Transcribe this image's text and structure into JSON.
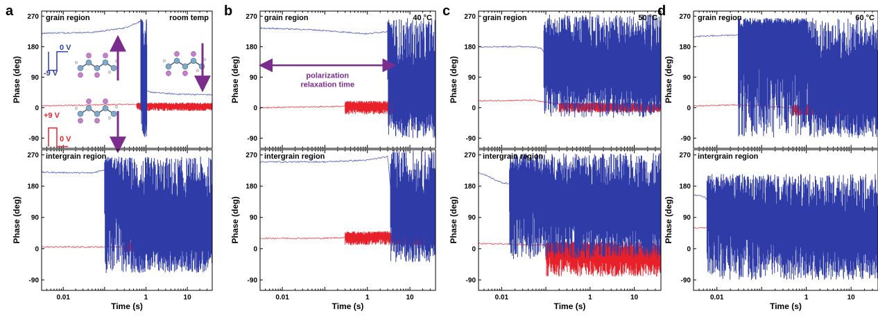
{
  "chart_data": [
    {
      "type": "line",
      "panel_label": "a",
      "condition": "room temp",
      "xlabel": "Time (s)",
      "xscale": "log",
      "xlim": [
        0.003,
        40
      ],
      "xticks": [
        "0.01",
        "1",
        "10"
      ],
      "ylabel": "Phase (deg)",
      "ylim": [
        -120,
        285
      ],
      "yticks": [
        "-90",
        "0",
        "90",
        "180",
        "270"
      ],
      "subplots": [
        {
          "title": "grain region",
          "series": [
            {
              "color": "#2f3ca8",
              "x": [
                0.003,
                0.05,
                0.3,
                0.75,
                0.85,
                1.5,
                5,
                40
              ],
              "y": [
                220,
                222,
                235,
                255,
                50,
                45,
                40,
                38
              ],
              "oscillation": {
                "t_start": 0.75,
                "t_end": 1.05,
                "low": -90,
                "high": 265
              }
            },
            {
              "color": "#e8202a",
              "x": [
                0.003,
                0.05,
                0.5,
                1,
                10,
                40
              ],
              "y": [
                5,
                8,
                10,
                8,
                5,
                5
              ],
              "oscillation": {
                "t_start": 0.6,
                "t_end": 40,
                "low": -10,
                "high": 15
              }
            }
          ],
          "annotations": {
            "pulse_negative": "-9 V",
            "pulse_zero_1": "0 V",
            "pulse_positive": "+9 V",
            "pulse_zero_2": "0 V"
          }
        },
        {
          "title": "intergrain region",
          "series": [
            {
              "color": "#2f3ca8",
              "x": [
                0.003,
                0.05,
                0.12,
                0.8,
                2,
                40
              ],
              "y": [
                220,
                218,
                230,
                40,
                45,
                45
              ],
              "oscillation": {
                "t_start": 0.1,
                "t_end": 40,
                "low": -70,
                "high": 265
              }
            },
            {
              "color": "#e8202a",
              "x": [
                0.003,
                0.1,
                1,
                40
              ],
              "y": [
                5,
                5,
                5,
                5
              ],
              "oscillation": {
                "t_start": 0.3,
                "t_end": 40,
                "low": -10,
                "high": 20
              }
            }
          ]
        }
      ]
    },
    {
      "type": "line",
      "panel_label": "b",
      "condition": "40 °C",
      "xlabel": "Time (s)",
      "xscale": "log",
      "xlim": [
        0.003,
        40
      ],
      "xticks": [
        "0.01",
        "1",
        "10"
      ],
      "ylabel": "Phase (deg)",
      "ylim": [
        -120,
        285
      ],
      "yticks": [
        "-90",
        "0",
        "90",
        "180",
        "270"
      ],
      "subplots": [
        {
          "title": "grain region",
          "series": [
            {
              "color": "#2f3ca8",
              "x": [
                0.003,
                0.05,
                1,
                3,
                5,
                10,
                40
              ],
              "y": [
                235,
                230,
                218,
                225,
                40,
                30,
                25
              ],
              "oscillation": {
                "t_start": 3,
                "t_end": 40,
                "low": -90,
                "high": 265
              }
            },
            {
              "color": "#e8202a",
              "x": [
                0.003,
                0.1,
                1,
                10,
                40
              ],
              "y": [
                0,
                3,
                5,
                5,
                5
              ],
              "oscillation": {
                "t_start": 0.3,
                "t_end": 40,
                "low": -20,
                "high": 20
              }
            }
          ],
          "annotations": {
            "arrow_label_line1": "polarization",
            "arrow_label_line2": "relaxation time"
          }
        },
        {
          "title": "intergrain region",
          "series": [
            {
              "color": "#2f3ca8",
              "x": [
                0.003,
                0.1,
                1,
                3,
                4,
                10,
                40
              ],
              "y": [
                250,
                250,
                255,
                265,
                100,
                90,
                80
              ],
              "oscillation": {
                "t_start": 3.5,
                "t_end": 40,
                "low": -40,
                "high": 285
              }
            },
            {
              "color": "#e8202a",
              "x": [
                0.003,
                0.1,
                1,
                3,
                10,
                40
              ],
              "y": [
                30,
                30,
                35,
                40,
                15,
                10
              ],
              "oscillation": {
                "t_start": 0.3,
                "t_end": 40,
                "low": 10,
                "high": 50
              }
            }
          ]
        }
      ]
    },
    {
      "type": "line",
      "panel_label": "c",
      "condition": "50 °C",
      "xlabel": "Time (s)",
      "xscale": "log",
      "xlim": [
        0.003,
        40
      ],
      "xticks": [
        "0.01",
        "1",
        "10"
      ],
      "ylabel": "Phase (deg)",
      "ylim": [
        -120,
        285
      ],
      "yticks": [
        "-90",
        "0",
        "90",
        "180",
        "270"
      ],
      "subplots": [
        {
          "title": "grain region",
          "series": [
            {
              "color": "#2f3ca8",
              "x": [
                0.003,
                0.05,
                0.08,
                0.1,
                1,
                10,
                40
              ],
              "y": [
                180,
                180,
                175,
                150,
                120,
                110,
                100
              ],
              "oscillation": {
                "t_start": 0.09,
                "t_end": 40,
                "low": -30,
                "high": 275
              }
            },
            {
              "color": "#e8202a",
              "x": [
                0.003,
                0.05,
                0.2,
                1,
                40
              ],
              "y": [
                20,
                22,
                10,
                5,
                0
              ],
              "oscillation": {
                "t_start": 0.2,
                "t_end": 40,
                "low": -15,
                "high": 15
              }
            }
          ]
        },
        {
          "title": "intergrain region",
          "series": [
            {
              "color": "#2f3ca8",
              "x": [
                0.003,
                0.01,
                0.05,
                0.1,
                1,
                10,
                40
              ],
              "y": [
                220,
                190,
                180,
                150,
                120,
                110,
                100
              ],
              "oscillation": {
                "t_start": 0.015,
                "t_end": 40,
                "low": -30,
                "high": 275
              }
            },
            {
              "color": "#e8202a",
              "x": [
                0.003,
                0.1,
                1,
                10,
                40
              ],
              "y": [
                15,
                10,
                0,
                -15,
                -30
              ],
              "oscillation": {
                "t_start": 0.1,
                "t_end": 40,
                "low": -80,
                "high": 20
              }
            }
          ]
        }
      ]
    },
    {
      "type": "line",
      "panel_label": "d",
      "condition": "60 °C",
      "xlabel": "Time (s)",
      "xscale": "log",
      "xlim": [
        0.003,
        40
      ],
      "xticks": [
        "0.01",
        "1",
        "10"
      ],
      "ylabel": "Phase (deg)",
      "ylim": [
        -120,
        285
      ],
      "yticks": [
        "-90",
        "0",
        "90",
        "180",
        "270"
      ],
      "subplots": [
        {
          "title": "grain region",
          "series": [
            {
              "color": "#2f3ca8",
              "x": [
                0.003,
                0.03,
                0.05,
                1,
                1.5,
                10,
                40
              ],
              "y": [
                210,
                215,
                225,
                240,
                60,
                40,
                30
              ],
              "oscillation": {
                "t_start": 0.03,
                "t_end": 40,
                "low": -90,
                "high": 265
              }
            },
            {
              "color": "#e8202a",
              "x": [
                0.003,
                0.03,
                0.5,
                40
              ],
              "y": [
                5,
                8,
                0,
                -10
              ],
              "oscillation": {
                "t_start": 0.5,
                "t_end": 40,
                "low": -25,
                "high": 10
              }
            }
          ]
        },
        {
          "title": "intergrain region",
          "series": [
            {
              "color": "#2f3ca8",
              "x": [
                0.003,
                0.005,
                0.01,
                0.1,
                1,
                10,
                40
              ],
              "y": [
                155,
                150,
                120,
                80,
                60,
                40,
                30
              ],
              "oscillation": {
                "t_start": 0.006,
                "t_end": 40,
                "low": -90,
                "high": 215
              }
            },
            {
              "color": "#e8202a",
              "x": [
                0.003,
                0.01,
                0.1,
                1,
                40
              ],
              "y": [
                60,
                60,
                58,
                55,
                50
              ],
              "oscillation": {
                "t_start": 0.5,
                "t_end": 40,
                "low": 30,
                "high": 70
              }
            }
          ]
        }
      ]
    }
  ]
}
